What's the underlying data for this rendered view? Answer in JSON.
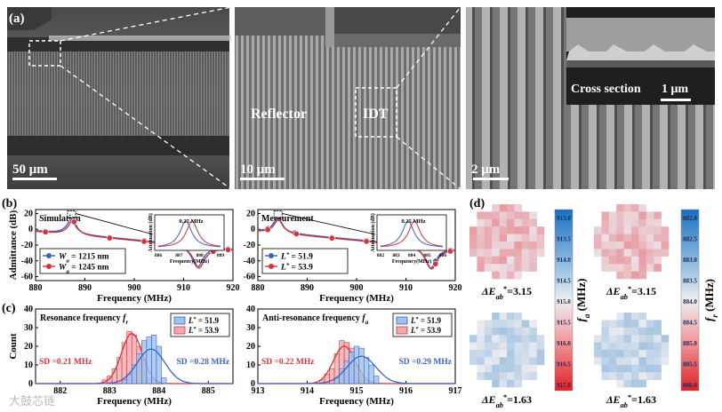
{
  "panel_labels": {
    "a": "(a)",
    "b": "(b)",
    "c": "(c)",
    "d": "(d)"
  },
  "sem": {
    "scale1": "50 μm",
    "scale2": "10 μm",
    "scale3": "2 μm",
    "reflector": "Reflector",
    "idt": "IDT",
    "cross_section": "Cross section",
    "scale_inset": "1 μm"
  },
  "watermark": "大鼓芯链",
  "colors": {
    "blue": "#3a62c9",
    "red": "#d7333a",
    "blue_fill": "#9cc3ec",
    "red_fill": "#f2a9ad"
  },
  "chart_data": [
    {
      "id": "b-left",
      "type": "line",
      "title": "Simulation",
      "xlabel": "Frequency (MHz)",
      "ylabel": "Admittance (dB)",
      "xlim": [
        880,
        920
      ],
      "ylim": [
        -65,
        25
      ],
      "xticks": [
        "880",
        "890",
        "900",
        "910",
        "920"
      ],
      "yticks": [
        "20",
        "0",
        "-20",
        "-40",
        "-60"
      ],
      "series": [
        {
          "name": "W_a = 1215 nm",
          "color": "blue",
          "fr": 887.2,
          "fa": 912.8
        },
        {
          "name": "W_a = 1245 nm",
          "color": "red",
          "fr": 887.5,
          "fa": 913.1
        }
      ],
      "legend": [
        {
          "prefix": "W",
          "sub": "a",
          "value": "= 1215 nm"
        },
        {
          "prefix": "W",
          "sub": "a",
          "value": "= 1245 nm"
        }
      ],
      "inset": {
        "ylabel": "Attenuation (dB)",
        "xlabel": "Frequency(MHz)",
        "xticks": [
          "886",
          "887",
          "888",
          "889"
        ],
        "annotation": "0.25 MHz"
      }
    },
    {
      "id": "b-right",
      "type": "line",
      "title": "Measurement",
      "xlabel": "Frequency (MHz)",
      "xlim": [
        880,
        920
      ],
      "ylim": [
        -65,
        25
      ],
      "xticks": [
        "880",
        "890",
        "900",
        "910",
        "920"
      ],
      "yticks": [
        "20",
        "0",
        "-20",
        "-40",
        "-60"
      ],
      "series": [
        {
          "name": "L* = 51.9",
          "color": "blue",
          "fr": 884.0,
          "fa": 915.0
        },
        {
          "name": "L* = 53.9",
          "color": "red",
          "fr": 884.2,
          "fa": 915.2
        }
      ],
      "legend": [
        {
          "prefix": "L",
          "sub": "*",
          "value": "= 51.9"
        },
        {
          "prefix": "L",
          "sub": "*",
          "value": "= 53.9"
        }
      ],
      "inset": {
        "ylabel": "Attenuation (dB)",
        "xlabel": "Frequency(MHz)",
        "xticks": [
          "882",
          "883",
          "884",
          "885",
          "886"
        ],
        "annotation": "0.25 MHz"
      }
    },
    {
      "id": "c-left",
      "type": "bar",
      "title": "Resonance frequency",
      "title_sym": "f",
      "title_sub": "r",
      "xlabel": "Frequency (MHz)",
      "ylabel": "Count",
      "xlim": [
        881.5,
        885.5
      ],
      "ylim": [
        0,
        40
      ],
      "xticks": [
        "882",
        "883",
        "884",
        "885"
      ],
      "yticks": [
        "0",
        "10",
        "20",
        "30",
        "40"
      ],
      "bin_width": 0.1,
      "series": [
        {
          "name": "L* = 51.9",
          "color": "blue",
          "mean": 883.84,
          "sd": 0.28,
          "bins": [
            883.3,
            883.4,
            883.5,
            883.6,
            883.7,
            883.8,
            883.9,
            884.0,
            884.1
          ],
          "counts": [
            2,
            5,
            10,
            16,
            23,
            25,
            26,
            20,
            3
          ]
        },
        {
          "name": "L* = 53.9",
          "color": "red",
          "mean": 883.45,
          "sd": 0.21,
          "bins": [
            882.9,
            883.0,
            883.1,
            883.2,
            883.3,
            883.4,
            883.5,
            883.6,
            883.7,
            883.8,
            883.9
          ],
          "counts": [
            2,
            4,
            8,
            14,
            22,
            28,
            26,
            20,
            13,
            3,
            2
          ]
        }
      ],
      "legend": [
        "= 51.9",
        "= 53.9"
      ],
      "sd_labels": [
        "SD =0.21 MHz",
        "SD =0.28 MHz"
      ]
    },
    {
      "id": "c-right",
      "type": "bar",
      "title": "Anti-resonance frequency",
      "title_sym": "f",
      "title_sub": "a",
      "xlabel": "Frequency (MHz)",
      "xlim": [
        913,
        917
      ],
      "ylim": [
        0,
        40
      ],
      "xticks": [
        "913",
        "914",
        "915",
        "916",
        "917"
      ],
      "yticks": [
        "0",
        "10",
        "20",
        "30",
        "40"
      ],
      "bin_width": 0.1,
      "series": [
        {
          "name": "L* = 51.9",
          "color": "blue",
          "mean": 915.1,
          "sd": 0.29,
          "bins": [
            914.6,
            914.7,
            914.8,
            914.9,
            915.0,
            915.1,
            915.2,
            915.3,
            915.4
          ],
          "counts": [
            3,
            8,
            12,
            17,
            20,
            19,
            14,
            10,
            4
          ]
        },
        {
          "name": "L* = 53.9",
          "color": "red",
          "mean": 914.75,
          "sd": 0.22,
          "bins": [
            914.3,
            914.4,
            914.5,
            914.6,
            914.7,
            914.8,
            914.9,
            915.0,
            915.1,
            915.2
          ],
          "counts": [
            2,
            5,
            8,
            16,
            23,
            22,
            19,
            10,
            4,
            2
          ]
        }
      ],
      "legend": [
        "= 51.9",
        "= 53.9"
      ],
      "sd_labels": [
        "SD =0.22 MHz",
        "SD =0.29 MHz"
      ]
    },
    {
      "id": "d",
      "type": "heatmap",
      "maps": [
        {
          "label_prefix": "ΔE",
          "label_sub": "ab",
          "label_sup": "*",
          "value": "=3.15"
        },
        {
          "label_prefix": "ΔE",
          "label_sub": "ab",
          "label_sup": "*",
          "value": "=3.15"
        },
        {
          "label_prefix": "ΔE",
          "label_sub": "ab",
          "label_sup": "*",
          "value": "=1.63"
        },
        {
          "label_prefix": "ΔE",
          "label_sub": "ab",
          "label_sup": "*",
          "value": "=1.63"
        }
      ],
      "colorbar_fa": {
        "label": "f",
        "sub": "a",
        "unit": "(MHz)",
        "ticks": [
          "913.0",
          "913.5",
          "914.0",
          "914.5",
          "915.0",
          "915.5",
          "916.0",
          "916.5",
          "917.0"
        ]
      },
      "colorbar_fr": {
        "label": "f",
        "sub": "r",
        "unit": "(MHz)",
        "ticks": [
          "882.0",
          "882.5",
          "883.0",
          "883.5",
          "884.0",
          "884.5",
          "885.0",
          "885.5",
          "886.0"
        ]
      }
    }
  ]
}
